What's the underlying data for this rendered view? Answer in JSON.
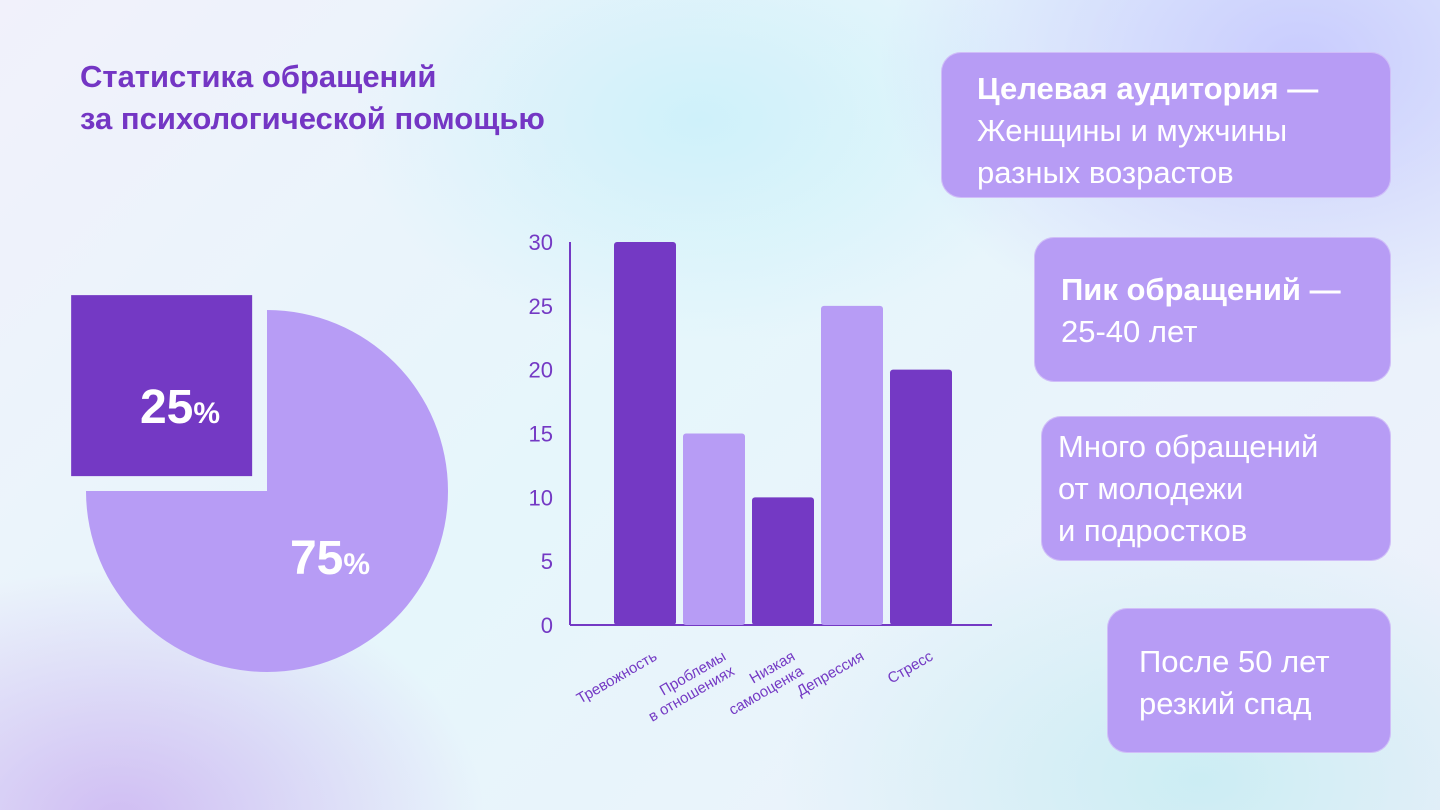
{
  "title": {
    "line1": "Статистика обращений",
    "line2": "за психологической помощью"
  },
  "chart_data": [
    {
      "type": "pie",
      "slices": [
        {
          "label": "25",
          "unit": "%",
          "value": 25,
          "color": "#7439c4",
          "exploded": true
        },
        {
          "label": "75",
          "unit": "%",
          "value": 75,
          "color": "#b79cf5",
          "exploded": false
        }
      ]
    },
    {
      "type": "bar",
      "categories": [
        [
          "Тревожность"
        ],
        [
          "Проблемы",
          "в отношениях"
        ],
        [
          "Низкая",
          "самооценка"
        ],
        [
          "Депрессия"
        ],
        [
          "Стресс"
        ]
      ],
      "values": [
        30,
        15,
        10,
        25,
        20
      ],
      "colors": [
        "#7439c4",
        "#b79cf5",
        "#7439c4",
        "#b79cf5",
        "#7439c4"
      ],
      "ylim": [
        0,
        30
      ],
      "yticks": [
        0,
        5,
        10,
        15,
        20,
        25,
        30
      ],
      "axis_color": "#7439c4"
    }
  ],
  "cards": [
    {
      "bold": "Целевая аудитория —",
      "lines": [
        "Женщины и мужчины",
        "разных возрастов"
      ]
    },
    {
      "bold": "Пик обращений —",
      "lines": [
        "25-40 лет"
      ]
    },
    {
      "bold": "",
      "lines": [
        "Много обращений",
        "от молодежи",
        "и подростков"
      ]
    },
    {
      "bold": "",
      "lines": [
        "После 50 лет",
        "резкий спад"
      ]
    }
  ]
}
